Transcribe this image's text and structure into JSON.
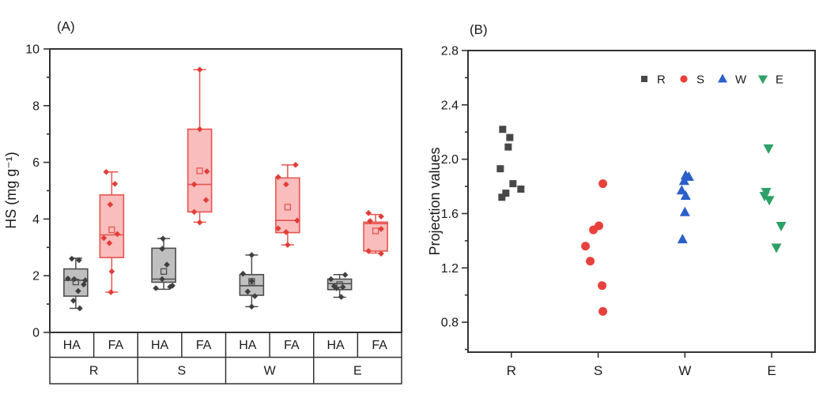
{
  "chart_data": [
    {
      "type": "box",
      "panel": "A",
      "title": "(A)",
      "ylabel": "HS (mg g⁻¹)",
      "xlabel": "",
      "ylim": [
        0,
        10
      ],
      "yticks": {
        "major": [
          0,
          2,
          4,
          6,
          8,
          10
        ],
        "labels": [
          "0",
          "2",
          "4",
          "6",
          "8",
          "10"
        ],
        "minor": [
          1,
          3,
          5,
          7,
          9
        ]
      },
      "grid": false,
      "x_table": {
        "row1": [
          "HA",
          "FA",
          "HA",
          "FA",
          "HA",
          "FA",
          "HA",
          "FA"
        ],
        "row2": [
          "R",
          "S",
          "W",
          "E"
        ]
      },
      "colors": {
        "HA": {
          "fill": "#c0bfbf",
          "edge": "#4d4d4d",
          "point": "#3f3f3f"
        },
        "FA": {
          "fill": "#f9bdbd",
          "edge": "#e8534f",
          "point": "#e23d38"
        }
      },
      "series": [
        {
          "group": "R",
          "fraction": "HA",
          "box": {
            "whisker_low": 0.85,
            "q1": 1.28,
            "median": 1.84,
            "q3": 2.24,
            "whisker_high": 2.62,
            "mean": 1.78
          },
          "points": [
            [
              -5,
              2.6
            ],
            [
              4,
              2.55
            ],
            [
              -10,
              1.9
            ],
            [
              -2,
              1.88
            ],
            [
              12,
              1.84
            ],
            [
              10,
              1.69
            ],
            [
              3,
              1.46
            ],
            [
              -3,
              1.12
            ],
            [
              5,
              0.85
            ]
          ]
        },
        {
          "group": "R",
          "fraction": "FA",
          "box": {
            "whisker_low": 1.42,
            "q1": 2.64,
            "median": 3.44,
            "q3": 4.85,
            "whisker_high": 5.66,
            "mean": 3.62
          },
          "points": [
            [
              -7,
              5.66
            ],
            [
              4,
              5.24
            ],
            [
              -2,
              4.51
            ],
            [
              7,
              3.47
            ],
            [
              -10,
              3.33
            ],
            [
              -3,
              3.15
            ],
            [
              0,
              2.15
            ],
            [
              -1,
              1.42
            ]
          ]
        },
        {
          "group": "S",
          "fraction": "HA",
          "box": {
            "whisker_low": 1.52,
            "q1": 1.77,
            "median": 1.88,
            "q3": 2.97,
            "whisker_high": 3.31,
            "mean": 2.15
          },
          "points": [
            [
              -1,
              3.31
            ],
            [
              -2,
              2.95
            ],
            [
              4,
              2.39
            ],
            [
              -2,
              1.88
            ],
            [
              11,
              1.65
            ],
            [
              8,
              1.61
            ],
            [
              -10,
              1.56
            ]
          ]
        },
        {
          "group": "S",
          "fraction": "FA",
          "box": {
            "whisker_low": 3.89,
            "q1": 4.25,
            "median": 5.22,
            "q3": 7.17,
            "whisker_high": 9.27,
            "mean": 5.7
          },
          "points": [
            [
              0,
              9.27
            ],
            [
              0,
              7.17
            ],
            [
              9,
              5.68
            ],
            [
              -7,
              5.22
            ],
            [
              8,
              4.67
            ],
            [
              -7,
              4.25
            ],
            [
              0,
              3.88
            ]
          ]
        },
        {
          "group": "W",
          "fraction": "HA",
          "box": {
            "whisker_low": 0.91,
            "q1": 1.31,
            "median": 1.65,
            "q3": 2.04,
            "whisker_high": 2.73,
            "mean": 1.8
          },
          "points": [
            [
              0,
              2.73
            ],
            [
              -11,
              2.07
            ],
            [
              0,
              1.81
            ],
            [
              -5,
              1.44
            ],
            [
              4,
              1.28
            ],
            [
              0,
              0.91
            ]
          ]
        },
        {
          "group": "W",
          "fraction": "FA",
          "box": {
            "whisker_low": 3.09,
            "q1": 3.52,
            "median": 3.95,
            "q3": 5.45,
            "whisker_high": 5.91,
            "mean": 4.42
          },
          "points": [
            [
              10,
              5.91
            ],
            [
              -12,
              5.48
            ],
            [
              -2,
              5.22
            ],
            [
              12,
              3.95
            ],
            [
              -12,
              3.67
            ],
            [
              -2,
              3.54
            ],
            [
              0,
              3.09
            ]
          ]
        },
        {
          "group": "E",
          "fraction": "HA",
          "box": {
            "whisker_low": 1.24,
            "q1": 1.51,
            "median": 1.72,
            "q3": 1.88,
            "whisker_high": 2.04,
            "mean": 1.69
          },
          "points": [
            [
              7,
              2.03
            ],
            [
              -11,
              1.88
            ],
            [
              -7,
              1.63
            ],
            [
              4,
              1.6
            ],
            [
              -4,
              1.56
            ],
            [
              2,
              1.25
            ]
          ]
        },
        {
          "group": "E",
          "fraction": "FA",
          "box": {
            "whisker_low": 2.8,
            "q1": 2.87,
            "median": 3.84,
            "q3": 3.89,
            "whisker_high": 4.16,
            "mean": 3.58
          },
          "points": [
            [
              -9,
              4.21
            ],
            [
              7,
              4.09
            ],
            [
              -7,
              3.93
            ],
            [
              7,
              3.65
            ],
            [
              -9,
              2.87
            ],
            [
              7,
              2.78
            ]
          ]
        }
      ]
    },
    {
      "type": "scatter",
      "panel": "B",
      "title": "(B)",
      "ylabel": "Projection values",
      "xlabel": "",
      "ylim": [
        0.58,
        2.8
      ],
      "yticks": {
        "major": [
          0.8,
          1.2,
          1.6,
          2.0,
          2.4,
          2.8
        ],
        "labels": [
          "0.8",
          "1.2",
          "1.6",
          "2.0",
          "2.4",
          "2.8"
        ],
        "minor": [
          0.6,
          1.0,
          1.4,
          1.8,
          2.2,
          2.6
        ]
      },
      "categories": [
        "R",
        "S",
        "W",
        "E"
      ],
      "grid": false,
      "legend_position": "top-right",
      "series": [
        {
          "name": "R",
          "marker": "square",
          "color": "#474747",
          "points": [
            [
              -11,
              2.22
            ],
            [
              -2,
              2.16
            ],
            [
              -4,
              2.09
            ],
            [
              -14,
              1.93
            ],
            [
              2,
              1.82
            ],
            [
              12,
              1.78
            ],
            [
              -7,
              1.75
            ],
            [
              -12,
              1.72
            ]
          ]
        },
        {
          "name": "S",
          "marker": "circle",
          "color": "#e8413d",
          "points": [
            [
              6,
              1.82
            ],
            [
              1,
              1.51
            ],
            [
              -6,
              1.48
            ],
            [
              -16,
              1.36
            ],
            [
              -10,
              1.25
            ],
            [
              5,
              1.07
            ],
            [
              6,
              0.88
            ]
          ]
        },
        {
          "name": "W",
          "marker": "triangle-up",
          "color": "#2a5fc9",
          "points": [
            [
              1,
              1.88
            ],
            [
              5,
              1.87
            ],
            [
              -1,
              1.84
            ],
            [
              -4,
              1.77
            ],
            [
              1,
              1.73
            ],
            [
              0,
              1.61
            ],
            [
              -3,
              1.41
            ]
          ]
        },
        {
          "name": "E",
          "marker": "triangle-down",
          "color": "#2da167",
          "points": [
            [
              -4,
              2.08
            ],
            [
              -7,
              1.76
            ],
            [
              -9,
              1.73
            ],
            [
              -3,
              1.7
            ],
            [
              12,
              1.51
            ],
            [
              6,
              1.35
            ]
          ]
        }
      ]
    }
  ]
}
